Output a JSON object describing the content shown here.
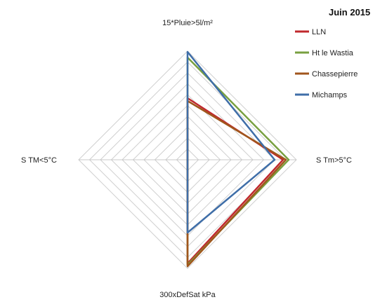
{
  "chart_data": {
    "type": "radar",
    "title": "Juin  2015",
    "axes": [
      "15*Pluie>5l/m²",
      "S Tm>5°C",
      "300xDefSat kPa",
      "S TM<5°C"
    ],
    "rmax": 155,
    "grid_levels": 10,
    "grid": true,
    "legend_position": "top-right",
    "series": [
      {
        "name": "LLN",
        "color": "#c0282d",
        "values": [
          88,
          136,
          148,
          0
        ]
      },
      {
        "name": "Ht le Wastia",
        "color": "#78a040",
        "values": [
          146,
          144,
          150,
          0
        ]
      },
      {
        "name": "Chassepierre",
        "color": "#a0561c",
        "values": [
          84,
          140,
          152,
          0
        ]
      },
      {
        "name": "Michamps",
        "color": "#3f6ea8",
        "values": [
          154,
          124,
          104,
          0
        ]
      }
    ]
  }
}
